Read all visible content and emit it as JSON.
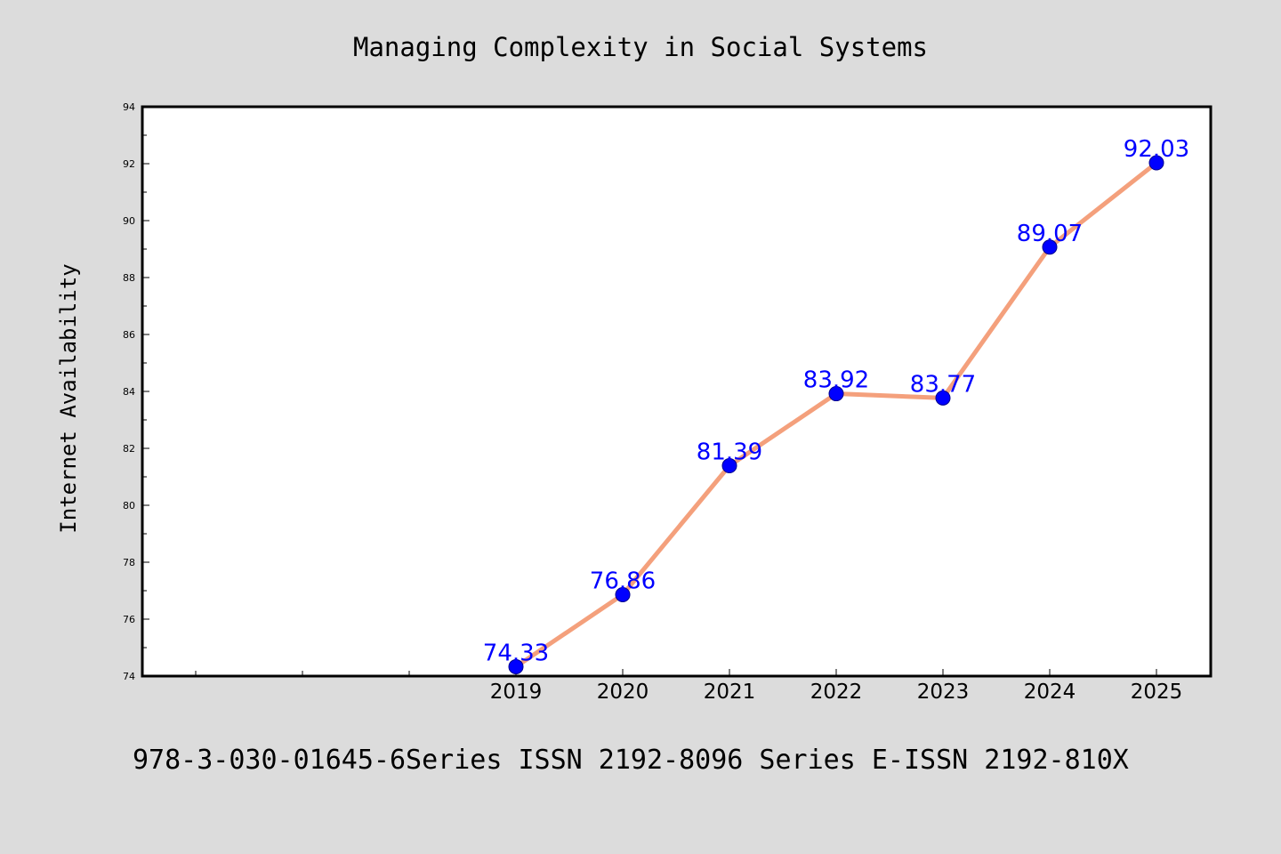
{
  "chart_data": {
    "type": "line",
    "title": "Managing Complexity in Social Systems",
    "xlabel": "",
    "ylabel": "Internet Availability",
    "x": [
      "2019",
      "2020",
      "2021",
      "2022",
      "2023",
      "2024",
      "2025"
    ],
    "series": [
      {
        "values": [
          74.33,
          76.86,
          81.39,
          83.92,
          83.77,
          89.07,
          92.03
        ]
      }
    ],
    "data_labels": [
      "74.33",
      "76.86",
      "81.39",
      "83.92",
      "83.77",
      "89.07",
      "92.03"
    ],
    "ylim": [
      74,
      94
    ],
    "yticks": [
      "74",
      "76",
      "78",
      "80",
      "82",
      "84",
      "86",
      "88",
      "90",
      "92",
      "94"
    ],
    "grid": false,
    "legend": "none"
  },
  "footer": {
    "text": "978-3-030-01645-6Series ISSN 2192-8096 Series E-ISSN 2192-810X"
  },
  "colors": {
    "background": "#dcdcdc",
    "plot_background": "#ffffff",
    "line": "#f4a07c",
    "marker": "#0000ff",
    "data_label": "#0000ff"
  }
}
